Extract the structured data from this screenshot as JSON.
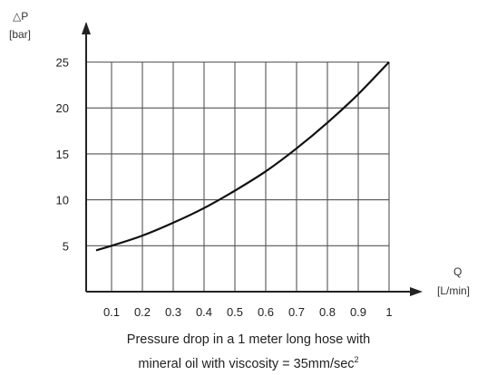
{
  "chart_data": {
    "type": "line",
    "xlabel": "Q",
    "xunit": "[L/min]",
    "ylabel": "△P",
    "yunit": "[bar]",
    "xlim": [
      0.05,
      1.0
    ],
    "ylim": [
      0,
      25
    ],
    "grid": true,
    "x_ticks": [
      "0.1",
      "0.2",
      "0.3",
      "0.4",
      "0.5",
      "0.6",
      "0.7",
      "0.8",
      "0.9",
      "1"
    ],
    "y_ticks": [
      "5",
      "10",
      "15",
      "20",
      "25"
    ],
    "series": [
      {
        "x": [
          0.05,
          0.1,
          0.2,
          0.3,
          0.4,
          0.5,
          0.6,
          0.7,
          0.8,
          0.9,
          1.0
        ],
        "values": [
          4.5,
          5.0,
          6.1,
          7.5,
          9.1,
          11.0,
          13.1,
          15.6,
          18.4,
          21.5,
          25.0
        ]
      }
    ],
    "caption_line1": "Pressure drop in a 1 meter long hose with",
    "caption_line2_main": "mineral oil with viscosity = 35mm/sec",
    "caption_line2_sup": "2"
  }
}
